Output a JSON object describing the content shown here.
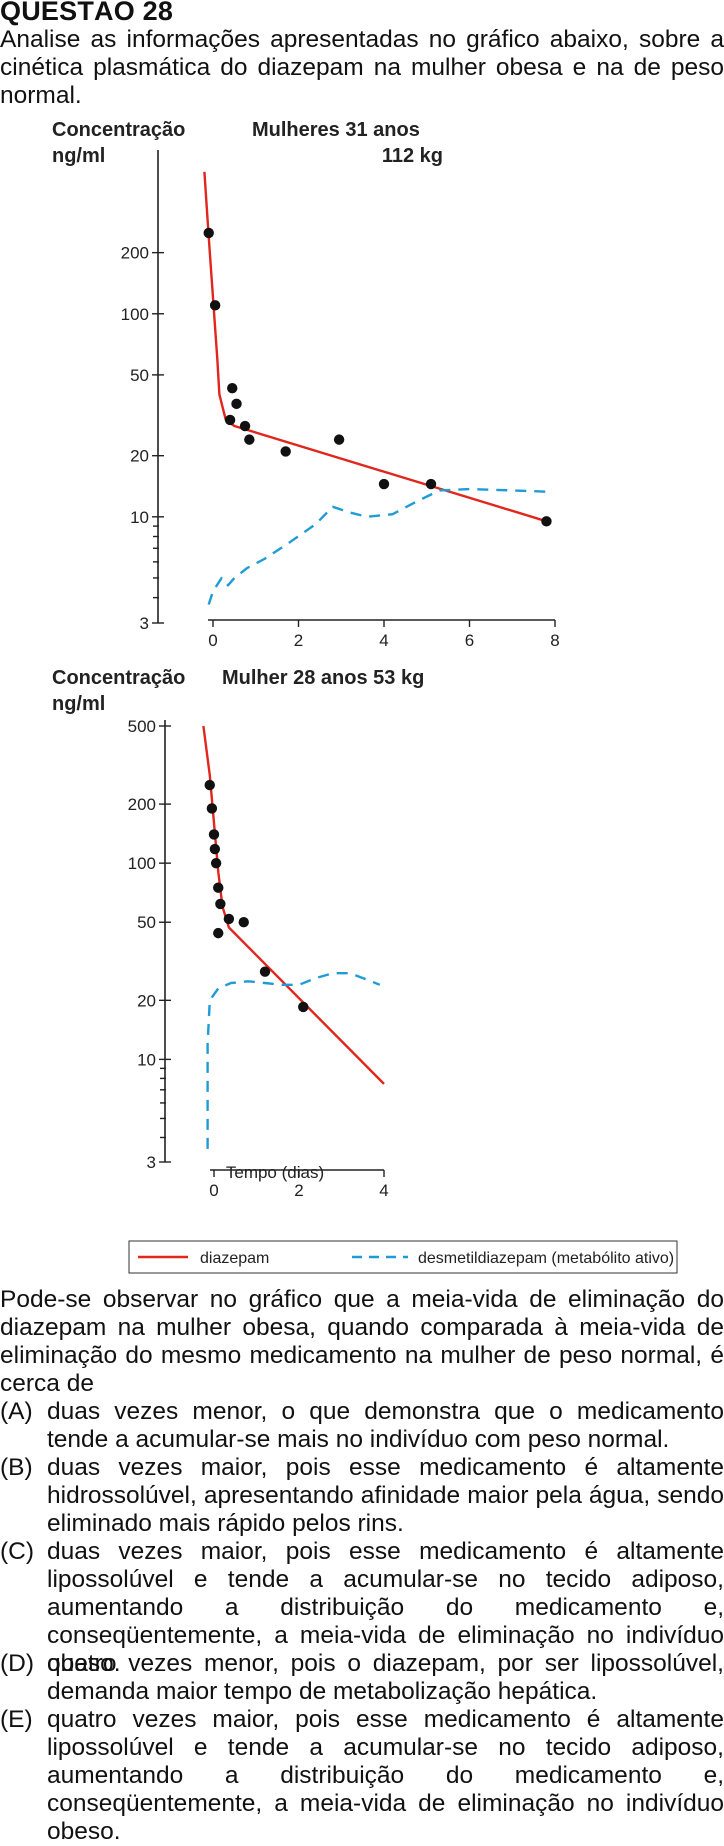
{
  "question": {
    "title": "QUESTÃO 28",
    "intro": "Analise as informações apresentadas no gráfico abaixo, sobre a cinética plasmática do diazepam na mulher obesa e na de peso normal.",
    "stem": "Pode-se observar no gráfico que a meia-vida de eliminação do diazepam na mulher obesa, quando comparada à meia-vida de eliminação do mesmo medicamento na mulher de peso normal, é cerca de",
    "options": [
      {
        "label": "(A)",
        "text": "duas vezes menor, o que demonstra que o medicamento tende a acumular-se mais no indivíduo com peso normal."
      },
      {
        "label": "(B)",
        "text": "duas vezes maior, pois esse medicamento é altamente hidrossolúvel, apresentando afinidade maior pela água, sendo eliminado mais rápido pelos rins."
      },
      {
        "label": "(C)",
        "text": "duas vezes maior, pois esse medicamento é altamente lipossolúvel e tende a acumular-se no tecido adiposo, aumentando a distribuição do medicamento e, conseqüentemente, a meia-vida de eliminação no indivíduo obeso."
      },
      {
        "label": "(D)",
        "text": "quatro vezes menor, pois o diazepam, por ser lipossolúvel, demanda maior tempo de metabolização hepática."
      },
      {
        "label": "(E)",
        "text": "quatro vezes maior, pois esse medicamento é altamente lipossolúvel e tende a acumular-se no tecido adiposo, aumentando a distribuição do medicamento e, conseqüentemente, a meia-vida de eliminação no indivíduo obeso."
      }
    ]
  },
  "colors": {
    "diazepam": "#e0261d",
    "metabolite": "#1f9bd7",
    "points": "#111111"
  },
  "chart_data": [
    {
      "type": "line",
      "yscale": "log",
      "ylabel_line1": "Concentração",
      "ylabel_line2": "ng/ml",
      "title_line1": "Mulheres 31 anos",
      "title_line2": "112 kg",
      "xlabel": "",
      "xlim": [
        0,
        8
      ],
      "ylim": [
        3,
        900
      ],
      "xticks": [
        0,
        2,
        4,
        6,
        8
      ],
      "xtick_labels": [
        "0",
        "2",
        "4",
        "6",
        "8"
      ],
      "yticks": [
        3,
        10,
        20,
        50,
        100,
        200
      ],
      "ytick_labels": [
        "3",
        "10",
        "20",
        "50",
        "100",
        "200"
      ],
      "points": {
        "name": "observed",
        "x": [
          -0.1,
          0.05,
          0.45,
          0.55,
          0.4,
          0.75,
          0.85,
          1.7,
          2.95,
          4.0,
          5.1,
          7.8
        ],
        "y": [
          250,
          110,
          43,
          36,
          30,
          28,
          24,
          21,
          24,
          14.5,
          14.5,
          9.5
        ]
      },
      "series": [
        {
          "name": "diazepam",
          "style": "solid",
          "x": [
            -0.2,
            -0.1,
            0.0,
            0.1,
            0.15,
            0.3,
            0.5,
            7.8
          ],
          "y": [
            500,
            240,
            120,
            60,
            40,
            30,
            28,
            9.5
          ]
        },
        {
          "name": "desmetildiazepam (metabólito ativo)",
          "style": "dashed",
          "x": [
            -0.1,
            0.0,
            0.2,
            0.35,
            0.5,
            0.8,
            1.2,
            1.8,
            2.4,
            2.8,
            3.2,
            3.6,
            4.2,
            4.8,
            5.3,
            6.0,
            7.0,
            7.8
          ],
          "y": [
            3.7,
            4.3,
            5.0,
            4.6,
            5.0,
            5.6,
            6.2,
            7.5,
            9.2,
            11.2,
            10.5,
            10.0,
            10.3,
            12.0,
            13.5,
            13.7,
            13.5,
            13.3
          ]
        }
      ]
    },
    {
      "type": "line",
      "yscale": "log",
      "ylabel_line1": "Concentração",
      "ylabel_line2": "ng/ml",
      "title_line1": "Mulher 28 anos 53 kg",
      "xlabel": "Tempo (dias)",
      "xlim": [
        0,
        4
      ],
      "ylim": [
        3,
        500
      ],
      "xticks": [
        0,
        2,
        4
      ],
      "xtick_labels": [
        "0",
        "2",
        "4"
      ],
      "yticks": [
        3,
        10,
        20,
        50,
        100,
        200,
        500
      ],
      "ytick_labels": [
        "3",
        "10",
        "20",
        "50",
        "100",
        "200",
        "500"
      ],
      "points": {
        "name": "observed",
        "x": [
          -0.1,
          -0.05,
          0.0,
          0.02,
          0.05,
          0.1,
          0.15,
          0.1,
          0.35,
          0.7,
          1.2,
          2.1
        ],
        "y": [
          250,
          190,
          140,
          118,
          100,
          75,
          62,
          44,
          52,
          50,
          28,
          18.5
        ]
      },
      "series": [
        {
          "name": "diazepam",
          "style": "solid",
          "x": [
            -0.25,
            -0.1,
            0.0,
            0.1,
            0.2,
            0.35,
            4.0
          ],
          "y": [
            500,
            280,
            160,
            90,
            60,
            47,
            7.5
          ]
        },
        {
          "name": "desmetildiazepam (metabólito ativo)",
          "style": "dashed",
          "x": [
            -0.15,
            -0.15,
            -0.1,
            0.1,
            0.4,
            0.8,
            1.2,
            1.6,
            2.0,
            2.4,
            2.8,
            3.2,
            3.6,
            3.9
          ],
          "y": [
            3.5,
            12,
            20,
            23,
            24.5,
            25,
            24.5,
            24,
            24,
            26,
            27.5,
            27.5,
            25.5,
            24
          ]
        }
      ]
    }
  ],
  "legend": {
    "diazepam": "diazepam",
    "metabolite": "desmetildiazepam (metabólito ativo)"
  }
}
